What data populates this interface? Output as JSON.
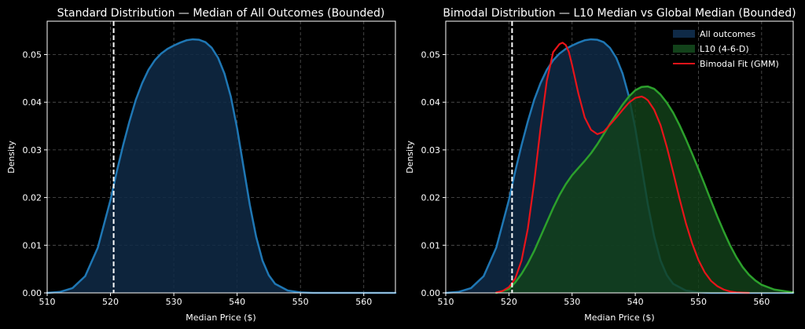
{
  "colors": {
    "background": "#000000",
    "all_outcomes_line": "#1f77b4",
    "all_outcomes_fill": "#0f2a47",
    "l10_line": "#2ca02c",
    "l10_fill": "#12421a",
    "gmm_line": "#e8141a",
    "current_price_line": "#ffffff",
    "grid": "#555555"
  },
  "chart_data": [
    {
      "type": "area",
      "title": "Standard Distribution — Median of All Outcomes (Bounded)",
      "xlabel": "Median Price ($)",
      "ylabel": "Density",
      "xlim": [
        510,
        565
      ],
      "ylim": [
        0,
        0.057
      ],
      "xticks": [
        510,
        520,
        530,
        540,
        550,
        560
      ],
      "yticks": [
        0.0,
        0.01,
        0.02,
        0.03,
        0.04,
        0.05
      ],
      "xtick_labels": [
        "510",
        "520",
        "530",
        "540",
        "550",
        "560"
      ],
      "ytick_labels": [
        "0.00",
        "0.01",
        "0.02",
        "0.03",
        "0.04",
        "0.05"
      ],
      "grid": true,
      "reference_line": {
        "x": 520.5,
        "style": "dashed",
        "color": "#ffffff"
      },
      "series": [
        {
          "name": "All outcomes",
          "kind": "filled_density",
          "x": [
            510,
            512,
            514,
            516,
            518,
            519,
            520,
            521,
            522,
            523,
            524,
            525,
            526,
            527,
            528,
            529,
            530,
            531,
            532,
            533,
            534,
            535,
            536,
            537,
            538,
            539,
            540,
            541,
            542,
            543,
            544,
            545,
            546,
            548,
            550,
            552,
            555,
            560,
            565
          ],
          "y": [
            0.0,
            0.0002,
            0.001,
            0.0035,
            0.0095,
            0.0145,
            0.0195,
            0.0255,
            0.031,
            0.036,
            0.0405,
            0.044,
            0.0468,
            0.0488,
            0.0502,
            0.0512,
            0.0519,
            0.0525,
            0.053,
            0.0532,
            0.0531,
            0.0526,
            0.0514,
            0.0493,
            0.046,
            0.0412,
            0.0345,
            0.0265,
            0.0185,
            0.0118,
            0.0068,
            0.0037,
            0.0019,
            0.0005,
            0.0001,
            0.0,
            0.0,
            0.0,
            0.0
          ]
        }
      ]
    },
    {
      "type": "area",
      "title": "Bimodal Distribution — L10 Median vs Global Median (Bounded)",
      "xlabel": "Median Price ($)",
      "ylabel": "Density",
      "xlim": [
        510,
        565
      ],
      "ylim": [
        0,
        0.057
      ],
      "xticks": [
        510,
        520,
        530,
        540,
        550,
        560
      ],
      "yticks": [
        0.0,
        0.01,
        0.02,
        0.03,
        0.04,
        0.05
      ],
      "xtick_labels": [
        "510",
        "520",
        "530",
        "540",
        "550",
        "560"
      ],
      "ytick_labels": [
        "0.00",
        "0.01",
        "0.02",
        "0.03",
        "0.04",
        "0.05"
      ],
      "grid": true,
      "legend_position": "top-right",
      "reference_line": {
        "x": 520.5,
        "style": "dashed",
        "color": "#ffffff"
      },
      "series": [
        {
          "name": "All outcomes",
          "legend_label": "All outcomes",
          "kind": "filled_density",
          "x": [
            510,
            512,
            514,
            516,
            518,
            519,
            520,
            521,
            522,
            523,
            524,
            525,
            526,
            527,
            528,
            529,
            530,
            531,
            532,
            533,
            534,
            535,
            536,
            537,
            538,
            539,
            540,
            541,
            542,
            543,
            544,
            545,
            546,
            548,
            550,
            552,
            555,
            560,
            565
          ],
          "y": [
            0.0,
            0.0002,
            0.001,
            0.0035,
            0.0095,
            0.0145,
            0.0195,
            0.0255,
            0.031,
            0.036,
            0.0405,
            0.044,
            0.0468,
            0.0488,
            0.0502,
            0.0512,
            0.0519,
            0.0525,
            0.053,
            0.0532,
            0.0531,
            0.0526,
            0.0514,
            0.0493,
            0.046,
            0.0412,
            0.0345,
            0.0265,
            0.0185,
            0.0118,
            0.0068,
            0.0037,
            0.0019,
            0.0005,
            0.0001,
            0.0,
            0.0,
            0.0,
            0.0
          ]
        },
        {
          "name": "L10 (4-6-D)",
          "legend_label": "L10 (4-6-D)",
          "kind": "filled_density",
          "x": [
            518,
            520,
            521,
            522,
            523,
            524,
            525,
            526,
            527,
            528,
            529,
            530,
            531,
            532,
            533,
            534,
            535,
            536,
            537,
            538,
            539,
            540,
            541,
            542,
            543,
            544,
            545,
            546,
            547,
            548,
            549,
            550,
            551,
            552,
            553,
            554,
            555,
            556,
            557,
            558,
            559,
            560,
            562,
            564,
            565
          ],
          "y": [
            0.0,
            0.0008,
            0.0022,
            0.004,
            0.0062,
            0.0088,
            0.0118,
            0.0148,
            0.0178,
            0.0205,
            0.0228,
            0.0247,
            0.0262,
            0.0277,
            0.0293,
            0.0312,
            0.0333,
            0.0355,
            0.0375,
            0.0395,
            0.0412,
            0.0425,
            0.0432,
            0.0433,
            0.0428,
            0.0416,
            0.0399,
            0.0378,
            0.0352,
            0.0323,
            0.0292,
            0.026,
            0.0227,
            0.0193,
            0.016,
            0.0129,
            0.01,
            0.0075,
            0.0054,
            0.0038,
            0.0026,
            0.0017,
            0.0007,
            0.0003,
            0.0001
          ]
        },
        {
          "name": "Bimodal Fit (GMM)",
          "legend_label": "Bimodal Fit (GMM)",
          "kind": "line",
          "x": [
            518,
            519,
            520,
            521,
            522,
            523,
            524,
            525,
            526,
            527,
            528,
            528.5,
            529,
            529.5,
            530,
            531,
            532,
            533,
            534,
            535,
            536,
            537,
            538,
            539,
            540,
            541,
            541.5,
            542,
            543,
            544,
            545,
            546,
            547,
            548,
            549,
            550,
            551,
            552,
            553,
            554,
            555,
            556,
            558
          ],
          "y": [
            0.0001,
            0.0004,
            0.0012,
            0.003,
            0.0068,
            0.0135,
            0.0232,
            0.0345,
            0.0445,
            0.0505,
            0.0522,
            0.0525,
            0.052,
            0.0505,
            0.0478,
            0.0418,
            0.0368,
            0.0342,
            0.0333,
            0.0338,
            0.0353,
            0.0368,
            0.0384,
            0.0399,
            0.0409,
            0.0412,
            0.0409,
            0.0404,
            0.0384,
            0.0352,
            0.0306,
            0.0253,
            0.0198,
            0.0147,
            0.0104,
            0.0069,
            0.0043,
            0.0025,
            0.0014,
            0.0007,
            0.0003,
            0.0001,
            0.0
          ]
        }
      ]
    }
  ]
}
